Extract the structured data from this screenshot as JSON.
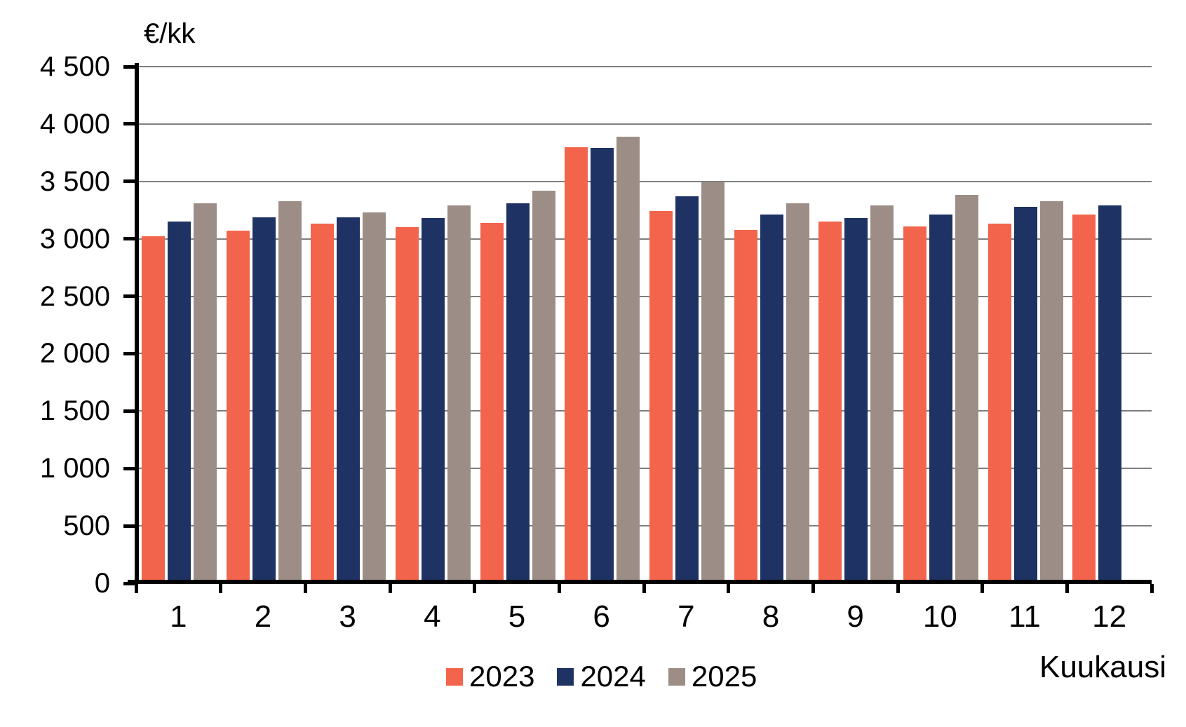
{
  "chart": {
    "y_axis_title": "€/kk",
    "x_axis_title": "Kuukausi"
  },
  "chart_data": {
    "type": "bar",
    "title": "",
    "ylabel": "€/kk",
    "xlabel": "Kuukausi",
    "categories": [
      "1",
      "2",
      "3",
      "4",
      "5",
      "6",
      "7",
      "8",
      "9",
      "10",
      "11",
      "12"
    ],
    "series": [
      {
        "name": "2023",
        "color": "#F2654C",
        "values": [
          3020,
          3070,
          3130,
          3100,
          3140,
          3800,
          3240,
          3080,
          3150,
          3110,
          3130,
          3210
        ]
      },
      {
        "name": "2024",
        "color": "#1E3263",
        "values": [
          3150,
          3190,
          3190,
          3180,
          3310,
          3790,
          3370,
          3210,
          3180,
          3210,
          3280,
          3290
        ]
      },
      {
        "name": "2025",
        "color": "#9C8E86",
        "values": [
          3310,
          3330,
          3230,
          3290,
          3420,
          3890,
          3490,
          3310,
          3290,
          3380,
          3330,
          null
        ]
      }
    ],
    "ylim": [
      0,
      4500
    ],
    "y_tick_step": 500,
    "y_tick_labels": [
      "0",
      "500",
      "1 000",
      "1 500",
      "2 000",
      "2 500",
      "3 000",
      "3 500",
      "4 000",
      "4 500"
    ],
    "grid": true,
    "legend_position": "bottom",
    "colors": {
      "axis": "#000000",
      "gridline": "#7F7F7F",
      "text": "#000000",
      "background": "#FFFFFF"
    }
  }
}
